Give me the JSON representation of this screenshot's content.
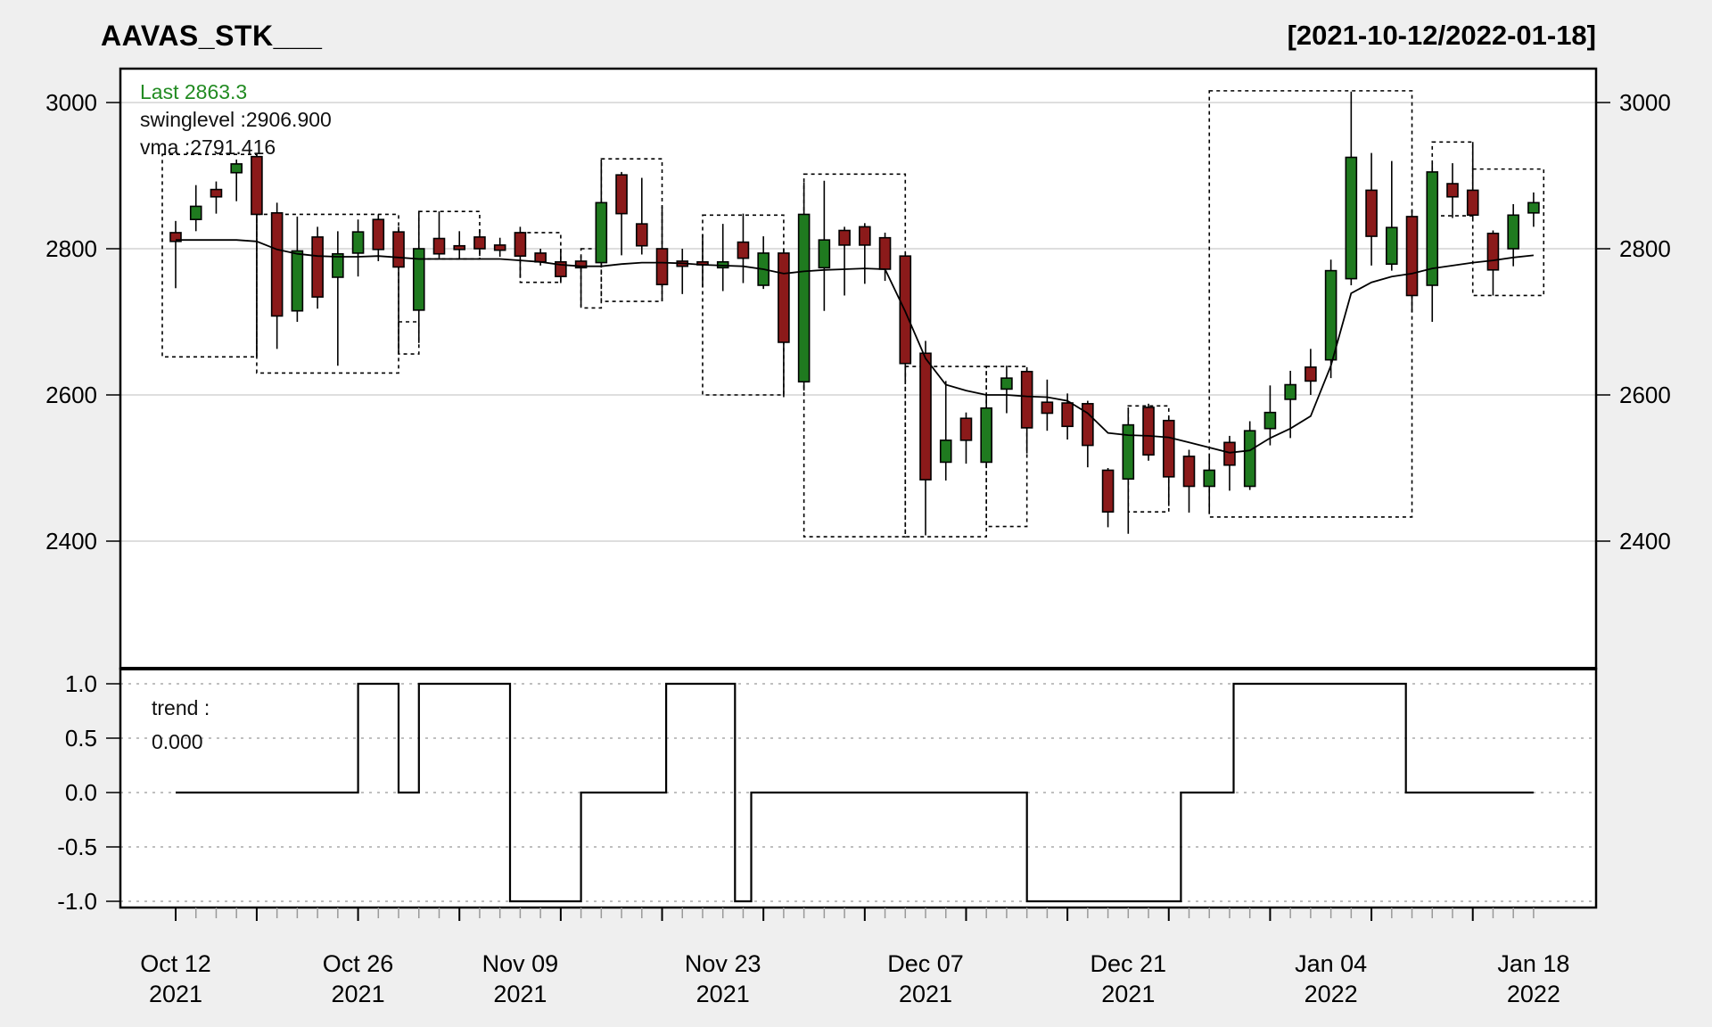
{
  "header": {
    "title": "AAVAS_STK___",
    "date_range": "[2021-10-12/2022-01-18]"
  },
  "legend": {
    "last_label": "Last 2863.3",
    "swinglevel_label": "swinglevel :2906.900",
    "vma_label": "vma :2791.416"
  },
  "trend_panel": {
    "label": "trend :",
    "value": "0.000"
  },
  "chart_data": {
    "type": "candlestick",
    "title": "AAVAS_STK___",
    "subtitle": "[2021-10-12/2022-01-18]",
    "ylabel": "",
    "xlabel": "",
    "y_axis": {
      "ticks": [
        3000,
        2800,
        2600,
        2400
      ],
      "range": [
        2280,
        3046
      ],
      "grid": "solid-gray"
    },
    "x_tick_labels": [
      {
        "line1": "Oct 12",
        "line2": "2021",
        "index": 0
      },
      {
        "line1": "Oct 26",
        "line2": "2021",
        "index": 9
      },
      {
        "line1": "Nov 09",
        "line2": "2021",
        "index": 17
      },
      {
        "line1": "Nov 23",
        "line2": "2021",
        "index": 27
      },
      {
        "line1": "Dec 07",
        "line2": "2021",
        "index": 37
      },
      {
        "line1": "Dec 21",
        "line2": "2021",
        "index": 47
      },
      {
        "line1": "Jan 04",
        "line2": "2022",
        "index": 57
      },
      {
        "line1": "Jan 18",
        "line2": "2022",
        "index": 67
      }
    ],
    "dates": [
      "2021-10-12",
      "2021-10-13",
      "2021-10-14",
      "2021-10-18",
      "2021-10-19",
      "2021-10-20",
      "2021-10-21",
      "2021-10-22",
      "2021-10-25",
      "2021-10-26",
      "2021-10-27",
      "2021-10-28",
      "2021-10-29",
      "2021-11-01",
      "2021-11-02",
      "2021-11-03",
      "2021-11-08",
      "2021-11-09",
      "2021-11-10",
      "2021-11-11",
      "2021-11-12",
      "2021-11-15",
      "2021-11-16",
      "2021-11-17",
      "2021-11-18",
      "2021-11-19",
      "2021-11-22",
      "2021-11-23",
      "2021-11-24",
      "2021-11-25",
      "2021-11-26",
      "2021-11-29",
      "2021-11-30",
      "2021-12-01",
      "2021-12-02",
      "2021-12-03",
      "2021-12-06",
      "2021-12-07",
      "2021-12-08",
      "2021-12-09",
      "2021-12-10",
      "2021-12-13",
      "2021-12-14",
      "2021-12-15",
      "2021-12-16",
      "2021-12-17",
      "2021-12-20",
      "2021-12-21",
      "2021-12-22",
      "2021-12-23",
      "2021-12-24",
      "2021-12-27",
      "2021-12-28",
      "2021-12-29",
      "2021-12-30",
      "2021-12-31",
      "2022-01-03",
      "2022-01-04",
      "2022-01-05",
      "2022-01-06",
      "2022-01-07",
      "2022-01-10",
      "2022-01-11",
      "2022-01-12",
      "2022-01-13",
      "2022-01-14",
      "2022-01-17",
      "2022-01-18"
    ],
    "ohlc": [
      [
        2822,
        2838,
        2746,
        2810
      ],
      [
        2840,
        2887,
        2824,
        2858
      ],
      [
        2881,
        2892,
        2848,
        2871
      ],
      [
        2904,
        2922,
        2865,
        2916
      ],
      [
        2926,
        2930,
        2652,
        2847
      ],
      [
        2849,
        2863,
        2663,
        2708
      ],
      [
        2715,
        2844,
        2700,
        2797
      ],
      [
        2816,
        2830,
        2718,
        2734
      ],
      [
        2761,
        2824,
        2640,
        2793
      ],
      [
        2794,
        2840,
        2762,
        2823
      ],
      [
        2840,
        2847,
        2783,
        2799
      ],
      [
        2823,
        2830,
        2656,
        2775
      ],
      [
        2716,
        2850,
        2671,
        2800
      ],
      [
        2814,
        2851,
        2787,
        2793
      ],
      [
        2804,
        2824,
        2786,
        2799
      ],
      [
        2816,
        2826,
        2790,
        2800
      ],
      [
        2805,
        2815,
        2789,
        2798
      ],
      [
        2822,
        2830,
        2760,
        2790
      ],
      [
        2794,
        2800,
        2777,
        2782
      ],
      [
        2782,
        2800,
        2753,
        2762
      ],
      [
        2783,
        2790,
        2721,
        2774
      ],
      [
        2781,
        2922,
        2775,
        2863
      ],
      [
        2901,
        2905,
        2791,
        2848
      ],
      [
        2834,
        2897,
        2792,
        2804
      ],
      [
        2800,
        2858,
        2728,
        2751
      ],
      [
        2783,
        2800,
        2738,
        2776
      ],
      [
        2782,
        2820,
        2747,
        2778
      ],
      [
        2774,
        2834,
        2742,
        2782
      ],
      [
        2809,
        2848,
        2753,
        2787
      ],
      [
        2750,
        2817,
        2745,
        2794
      ],
      [
        2794,
        2800,
        2597,
        2672
      ],
      [
        2618,
        2891,
        2606,
        2847
      ],
      [
        2774,
        2893,
        2715,
        2812
      ],
      [
        2825,
        2830,
        2736,
        2805
      ],
      [
        2830,
        2835,
        2752,
        2805
      ],
      [
        2815,
        2822,
        2756,
        2772
      ],
      [
        2790,
        2795,
        2619,
        2643
      ],
      [
        2657,
        2674,
        2408,
        2484
      ],
      [
        2508,
        2619,
        2483,
        2538
      ],
      [
        2568,
        2576,
        2506,
        2538
      ],
      [
        2508,
        2600,
        2500,
        2582
      ],
      [
        2608,
        2640,
        2575,
        2623
      ],
      [
        2632,
        2638,
        2520,
        2555
      ],
      [
        2590,
        2621,
        2551,
        2575
      ],
      [
        2589,
        2602,
        2539,
        2557
      ],
      [
        2588,
        2592,
        2501,
        2531
      ],
      [
        2497,
        2500,
        2419,
        2440
      ],
      [
        2485,
        2583,
        2410,
        2559
      ],
      [
        2583,
        2588,
        2510,
        2518
      ],
      [
        2565,
        2570,
        2448,
        2488
      ],
      [
        2516,
        2525,
        2439,
        2475
      ],
      [
        2475,
        2519,
        2437,
        2497
      ],
      [
        2535,
        2544,
        2469,
        2504
      ],
      [
        2475,
        2564,
        2470,
        2551
      ],
      [
        2554,
        2613,
        2531,
        2576
      ],
      [
        2594,
        2633,
        2541,
        2614
      ],
      [
        2638,
        2663,
        2600,
        2619
      ],
      [
        2648,
        2785,
        2623,
        2770
      ],
      [
        2759,
        3015,
        2750,
        2925
      ],
      [
        2880,
        2931,
        2777,
        2817
      ],
      [
        2779,
        2920,
        2770,
        2829
      ],
      [
        2844,
        2853,
        2713,
        2736
      ],
      [
        2750,
        2918,
        2700,
        2905
      ],
      [
        2889,
        2917,
        2842,
        2871
      ],
      [
        2880,
        2946,
        2842,
        2846
      ],
      [
        2821,
        2825,
        2736,
        2771
      ],
      [
        2800,
        2861,
        2776,
        2846
      ],
      [
        2849,
        2877,
        2830,
        2863
      ]
    ],
    "vma": [
      2812,
      2812,
      2812,
      2812,
      2810,
      2799,
      2793,
      2790,
      2789,
      2789,
      2790,
      2788,
      2786,
      2786,
      2786,
      2786,
      2786,
      2784,
      2782,
      2778,
      2776,
      2776,
      2779,
      2781,
      2781,
      2780,
      2778,
      2777,
      2776,
      2772,
      2766,
      2769,
      2771,
      2772,
      2773,
      2772,
      2714,
      2650,
      2614,
      2606,
      2600,
      2600,
      2598,
      2597,
      2592,
      2575,
      2548,
      2545,
      2544,
      2542,
      2535,
      2528,
      2521,
      2524,
      2541,
      2554,
      2571,
      2640,
      2739,
      2754,
      2762,
      2766,
      2773,
      2777,
      2781,
      2784,
      2788,
      2791
    ],
    "swing_boxes": [
      {
        "from": -0.66,
        "to": 4,
        "top": 2929,
        "bottom": 2652
      },
      {
        "from": 4,
        "to": 11,
        "top": 2847,
        "bottom": 2630
      },
      {
        "from": 11,
        "to": 12,
        "top": 2700,
        "bottom": 2656
      },
      {
        "from": 12,
        "to": 15,
        "top": 2851,
        "bottom": 2786
      },
      {
        "from": 17,
        "to": 19,
        "top": 2822,
        "bottom": 2754
      },
      {
        "from": 20,
        "to": 21,
        "top": 2800,
        "bottom": 2719
      },
      {
        "from": 21,
        "to": 24,
        "top": 2923,
        "bottom": 2728
      },
      {
        "from": 26,
        "to": 30,
        "top": 2846,
        "bottom": 2600
      },
      {
        "from": 31,
        "to": 36,
        "top": 2902,
        "bottom": 2406
      },
      {
        "from": 36,
        "to": 40,
        "top": 2639,
        "bottom": 2406
      },
      {
        "from": 40,
        "to": 42,
        "top": 2639,
        "bottom": 2420
      },
      {
        "from": 47,
        "to": 49,
        "top": 2585,
        "bottom": 2440
      },
      {
        "from": 51,
        "to": 61,
        "top": 3016,
        "bottom": 2433
      },
      {
        "from": 62,
        "to": 64,
        "top": 2946,
        "bottom": 2845
      },
      {
        "from": 64,
        "to": 67.5,
        "top": 2909,
        "bottom": 2736
      }
    ],
    "trend": {
      "yticks": [
        {
          "v": 1,
          "label": "1.0"
        },
        {
          "v": 0.5,
          "label": "0.5"
        },
        {
          "v": 0,
          "label": "0.0"
        },
        {
          "v": -0.5,
          "label": "-0.5"
        },
        {
          "v": -1,
          "label": "-1.0"
        }
      ],
      "segments": [
        {
          "v": 0,
          "from": 0,
          "to": 9
        },
        {
          "v": 1,
          "from": 9,
          "to": 11
        },
        {
          "v": 0,
          "from": 11,
          "to": 12
        },
        {
          "v": 1,
          "from": 12,
          "to": 16.5
        },
        {
          "v": -1,
          "from": 16.5,
          "to": 20
        },
        {
          "v": 0,
          "from": 20,
          "to": 24.2
        },
        {
          "v": 1,
          "from": 24.2,
          "to": 27.6
        },
        {
          "v": -1,
          "from": 27.6,
          "to": 28.4
        },
        {
          "v": 0,
          "from": 28.4,
          "to": 42
        },
        {
          "v": -1,
          "from": 42,
          "to": 49.6
        },
        {
          "v": 0,
          "from": 49.6,
          "to": 52.2
        },
        {
          "v": 1,
          "from": 52.2,
          "to": 60.7
        },
        {
          "v": 0,
          "from": 60.7,
          "to": 67
        }
      ]
    },
    "colors": {
      "up": "#1F7A1F",
      "down": "#8B1A1A",
      "candle_border": "#000000",
      "vma_line": "#000000",
      "legend_green": "#228B22",
      "grid_price": "#D4D4D4",
      "grid_trend": "#BFBFBF",
      "background": "#EFEFEF",
      "panel_bg": "#FFFFFF"
    },
    "legend_position": "top-left",
    "grid": true
  }
}
